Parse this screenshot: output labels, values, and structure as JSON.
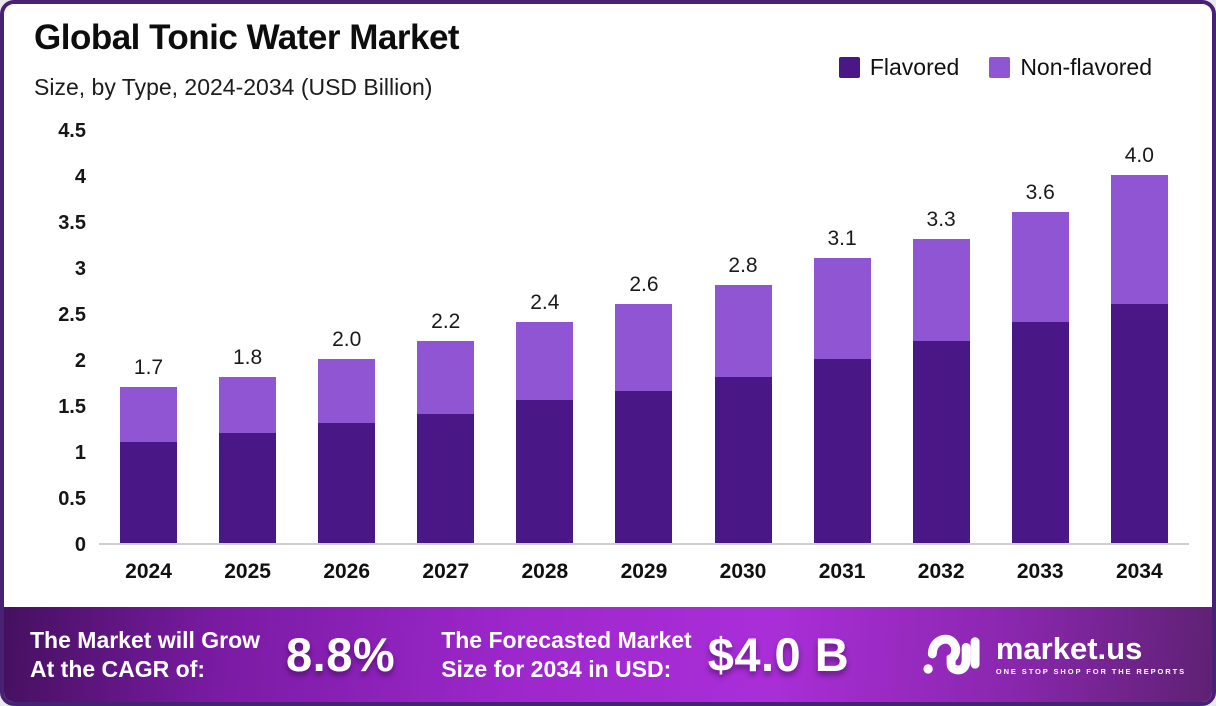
{
  "frame": {
    "border_color": "#472174",
    "background": "#ffffff"
  },
  "header": {
    "title": "Global Tonic Water Market",
    "subtitle": "Size, by Type, 2024-2034 (USD Billion)"
  },
  "legend": {
    "items": [
      {
        "label": "Flavored",
        "color": "#4a1787"
      },
      {
        "label": "Non-flavored",
        "color": "#8f55d3"
      }
    ]
  },
  "chart_data": {
    "type": "bar",
    "stacked": true,
    "title": "Global Tonic Water Market",
    "subtitle": "Size, by Type, 2024-2034 (USD Billion)",
    "unit": "USD Billion",
    "categories": [
      "2024",
      "2025",
      "2026",
      "2027",
      "2028",
      "2029",
      "2030",
      "2031",
      "2032",
      "2033",
      "2034"
    ],
    "series": [
      {
        "name": "Flavored",
        "color": "#4a1787",
        "values": [
          1.1,
          1.2,
          1.3,
          1.4,
          1.55,
          1.65,
          1.8,
          2.0,
          2.2,
          2.4,
          2.6
        ]
      },
      {
        "name": "Non-flavored",
        "color": "#8f55d3",
        "values": [
          0.6,
          0.6,
          0.7,
          0.8,
          0.85,
          0.95,
          1.0,
          1.1,
          1.1,
          1.2,
          1.4
        ]
      }
    ],
    "totals": [
      1.7,
      1.8,
      2.0,
      2.2,
      2.4,
      2.6,
      2.8,
      3.1,
      3.3,
      3.6,
      4.0
    ],
    "xlabel": "",
    "ylabel": "",
    "ylim": [
      0,
      4.5
    ],
    "ytick_step": 0.5,
    "yticks": [
      "0",
      "0.5",
      "1",
      "1.5",
      "2",
      "2.5",
      "3",
      "3.5",
      "4",
      "4.5"
    ],
    "grid": false,
    "legend_position": "top-right",
    "axis_line_color": "#cfcfcf"
  },
  "footer": {
    "cagr_label_line1": "The Market will Grow",
    "cagr_label_line2": "At the CAGR of:",
    "cagr_value": "8.8%",
    "forecast_label_line1": "The Forecasted Market",
    "forecast_label_line2": "Size for 2034 in USD:",
    "forecast_value": "$4.0 B",
    "logo_text": "market.us",
    "logo_tagline": "ONE STOP SHOP FOR THE REPORTS",
    "gradient": [
      "#45105f",
      "#9c27cb",
      "#aa2ed8",
      "#5e2173"
    ]
  }
}
